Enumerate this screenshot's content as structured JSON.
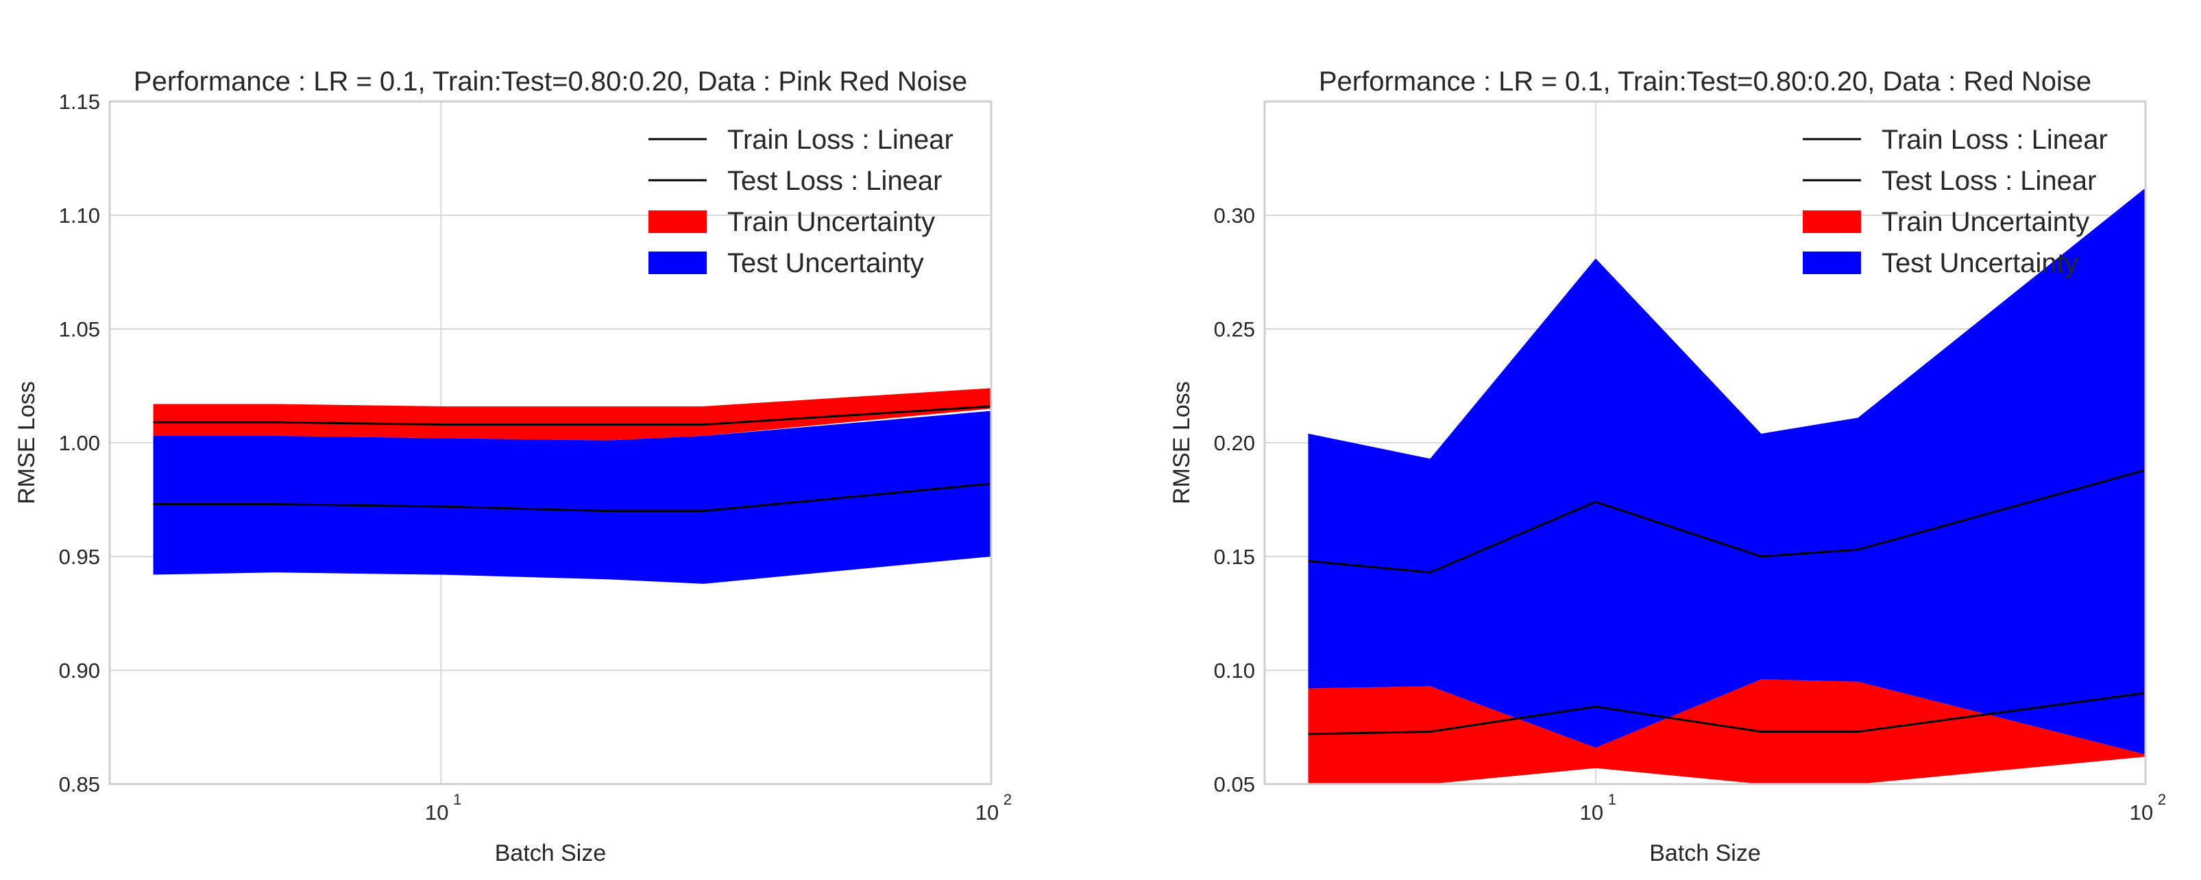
{
  "colors": {
    "train_band": "#ff0000",
    "test_band": "#0000ff",
    "loss_line": "#000000",
    "grid": "#d9d9d9",
    "frame": "#cfcfcf",
    "text": "#262626"
  },
  "chart_data": [
    {
      "type": "area",
      "title": "Performance : LR = 0.1, Train:Test=0.80:0.20, Data : Pink Red Noise",
      "xlabel": "Batch Size",
      "ylabel": "RMSE Loss",
      "xscale": "log",
      "xlim": [
        2.5,
        100
      ],
      "ylim": [
        0.85,
        1.15
      ],
      "yticks": [
        0.85,
        0.9,
        0.95,
        1.0,
        1.05,
        1.1,
        1.15
      ],
      "ytick_labels": [
        "0.85",
        "0.90",
        "0.95",
        "1.00",
        "1.05",
        "1.10",
        "1.15"
      ],
      "xticks": [
        {
          "value": 10,
          "base": "10",
          "exp": "1"
        },
        {
          "value": 100,
          "base": "10",
          "exp": "2"
        }
      ],
      "grid": true,
      "legend_position": "top-right",
      "legend": [
        {
          "label": "Train Loss : Linear",
          "kind": "line"
        },
        {
          "label": "Test Loss : Linear",
          "kind": "line"
        },
        {
          "label": "Train Uncertainty",
          "kind": "train_band"
        },
        {
          "label": "Test Uncertainty",
          "kind": "test_band"
        }
      ],
      "x": [
        3,
        5,
        10,
        20,
        30,
        100
      ],
      "series": [
        {
          "name": "Train Uncertainty",
          "kind": "train_band",
          "lower": [
            1.003,
            1.003,
            1.002,
            1.001,
            1.003,
            1.015
          ],
          "upper": [
            1.017,
            1.017,
            1.016,
            1.016,
            1.016,
            1.024
          ]
        },
        {
          "name": "Test Uncertainty",
          "kind": "test_band",
          "lower": [
            0.942,
            0.943,
            0.942,
            0.94,
            0.938,
            0.95
          ],
          "upper": [
            1.003,
            1.003,
            1.002,
            1.001,
            1.003,
            1.014
          ]
        },
        {
          "name": "Train Loss : Linear",
          "kind": "line",
          "values": [
            1.009,
            1.009,
            1.008,
            1.008,
            1.008,
            1.016
          ]
        },
        {
          "name": "Test Loss : Linear",
          "kind": "line",
          "values": [
            0.973,
            0.973,
            0.972,
            0.97,
            0.97,
            0.982
          ]
        }
      ]
    },
    {
      "type": "area",
      "title": "Performance : LR = 0.1, Train:Test=0.80:0.20, Data : Red Noise",
      "xlabel": "Batch Size",
      "ylabel": "RMSE Loss",
      "xscale": "log",
      "xlim": [
        2.5,
        100
      ],
      "ylim": [
        0.05,
        0.35
      ],
      "yticks": [
        0.05,
        0.1,
        0.15,
        0.2,
        0.25,
        0.3
      ],
      "ytick_labels": [
        "0.05",
        "0.10",
        "0.15",
        "0.20",
        "0.25",
        "0.30"
      ],
      "xticks": [
        {
          "value": 10,
          "base": "10",
          "exp": "1"
        },
        {
          "value": 100,
          "base": "10",
          "exp": "2"
        }
      ],
      "grid": true,
      "legend_position": "top-right",
      "legend": [
        {
          "label": "Train Loss : Linear",
          "kind": "line"
        },
        {
          "label": "Test Loss : Linear",
          "kind": "line"
        },
        {
          "label": "Train Uncertainty",
          "kind": "train_band"
        },
        {
          "label": "Test Uncertainty",
          "kind": "test_band"
        }
      ],
      "x": [
        3,
        5,
        10,
        20,
        30,
        100
      ],
      "series": [
        {
          "name": "Train Uncertainty",
          "kind": "train_band",
          "lower": [
            0.05,
            0.05,
            0.057,
            0.05,
            0.05,
            0.062
          ],
          "upper": [
            0.092,
            0.093,
            0.066,
            0.096,
            0.095,
            0.063
          ]
        },
        {
          "name": "Test Uncertainty",
          "kind": "test_band",
          "lower": [
            0.092,
            0.093,
            0.066,
            0.096,
            0.095,
            0.063
          ],
          "upper": [
            0.204,
            0.193,
            0.281,
            0.204,
            0.211,
            0.312
          ]
        },
        {
          "name": "Train Loss : Linear",
          "kind": "line",
          "values": [
            0.072,
            0.073,
            0.084,
            0.073,
            0.073,
            0.09
          ]
        },
        {
          "name": "Test Loss : Linear",
          "kind": "line",
          "values": [
            0.148,
            0.143,
            0.174,
            0.15,
            0.153,
            0.188
          ]
        }
      ]
    }
  ]
}
